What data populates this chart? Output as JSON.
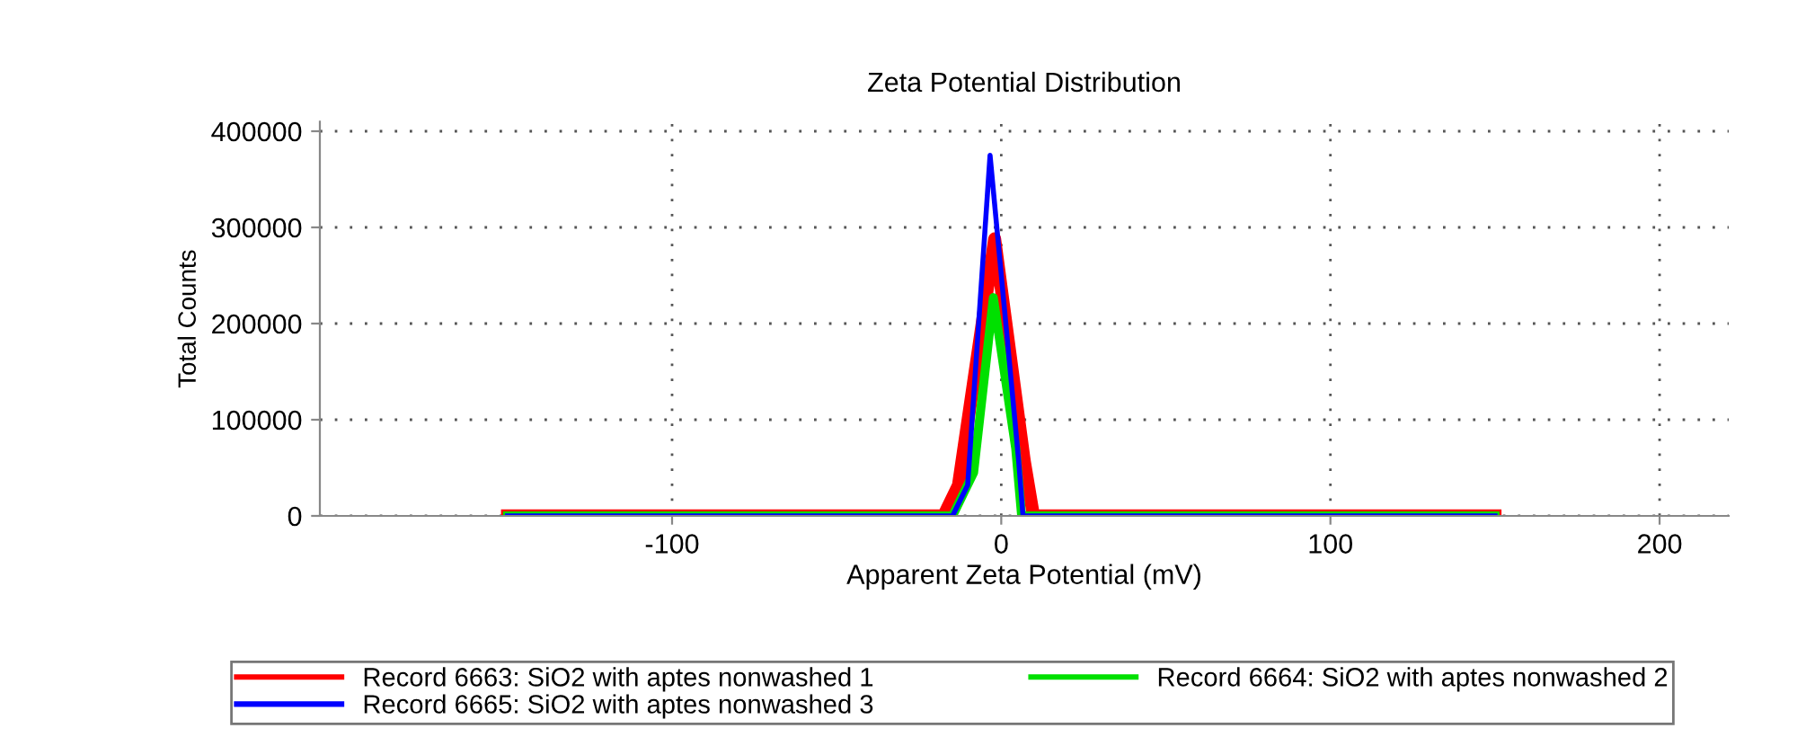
{
  "chart_data": {
    "type": "line",
    "title": "Zeta Potential Distribution",
    "xlabel": "Apparent Zeta Potential (mV)",
    "ylabel": "Total Counts",
    "xlim": [
      -207,
      221
    ],
    "ylim": [
      0,
      410000
    ],
    "xticks": [
      -100,
      0,
      100,
      200
    ],
    "yticks": [
      0,
      100000,
      200000,
      300000,
      400000
    ],
    "grid": true,
    "legend": "bottom",
    "line_style": "solid",
    "marker": "none",
    "series": [
      {
        "name": "Record 6663: SiO2 with aptes nonwashed 1",
        "color": "#ff0000",
        "x": [
          -150,
          -17.5,
          -13,
          -2,
          7,
          9.8,
          150
        ],
        "values": [
          0,
          0,
          32000,
          288000,
          57000,
          0,
          0
        ]
      },
      {
        "name": "Record 6664: SiO2 with aptes nonwashed 2",
        "color": "#00e000",
        "x": [
          -150,
          -14.8,
          -8.4,
          -2.4,
          4.4,
          6.2,
          150
        ],
        "values": [
          0,
          0,
          45000,
          227000,
          70000,
          0,
          0
        ]
      },
      {
        "name": "Record 6665: SiO2 with aptes nonwashed 3",
        "color": "#0000ff",
        "x": [
          -150,
          -14.8,
          -10.2,
          -3.4,
          5.3,
          6.6,
          150
        ],
        "values": [
          0,
          0,
          32000,
          375000,
          57000,
          0,
          0
        ]
      }
    ]
  }
}
